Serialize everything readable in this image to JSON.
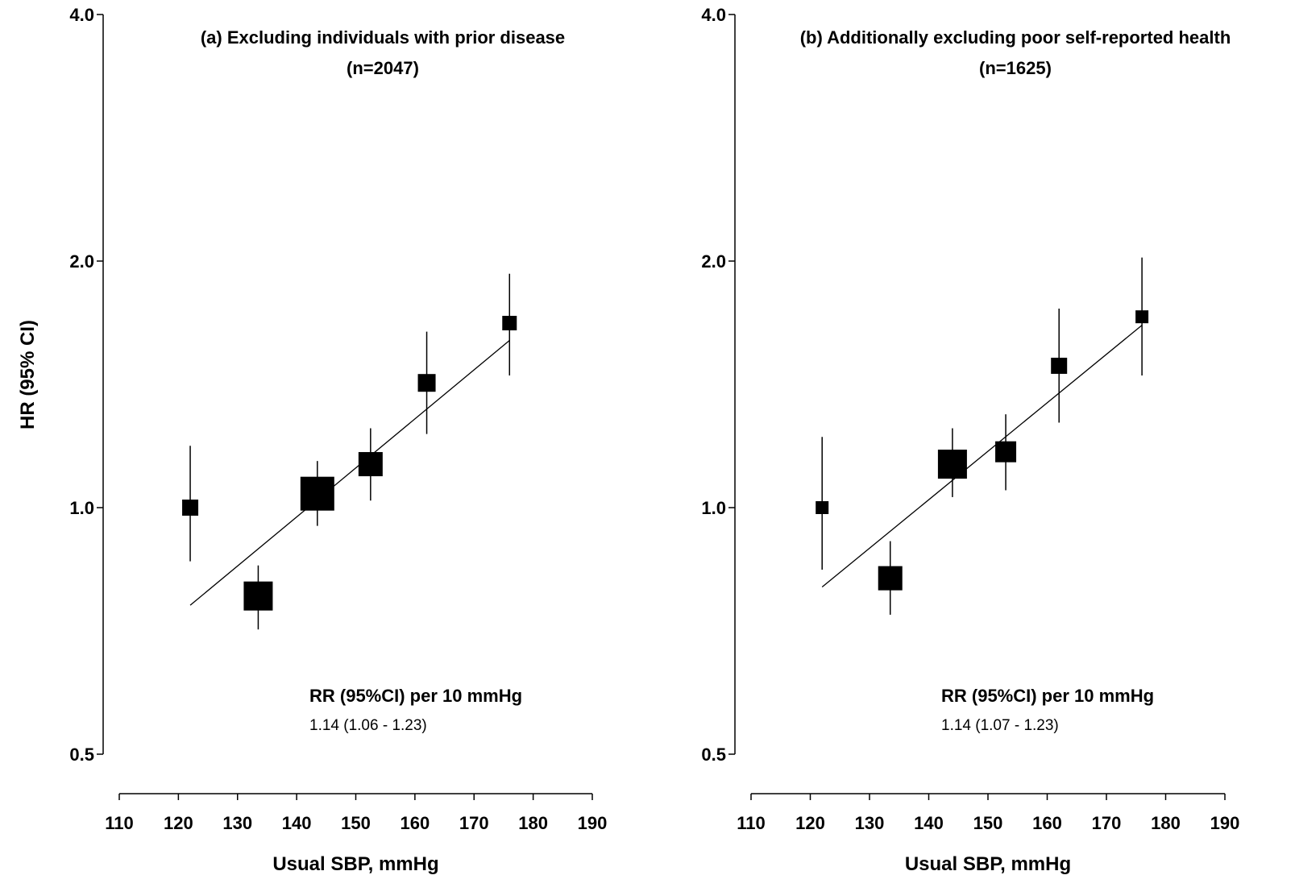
{
  "figure": {
    "ylabel": "HR (95% CI)"
  },
  "chart_data": [
    {
      "type": "scatter",
      "title": "(a) Excluding individuals with prior disease",
      "subtitle": "(n=2047)",
      "xlabel": "Usual SBP, mmHg",
      "ylabel": "HR (95% CI)",
      "y_scale": "log",
      "xlim": [
        110,
        190
      ],
      "ylim": [
        0.5,
        4.0
      ],
      "x_ticks": [
        "110",
        "120",
        "130",
        "140",
        "150",
        "160",
        "170",
        "180",
        "190"
      ],
      "y_ticks": [
        "0.5",
        "1.0",
        "2.0",
        "4.0"
      ],
      "points": [
        {
          "x": 122,
          "hr": 1.0,
          "lo": 0.86,
          "hi": 1.19,
          "weight": 1.0
        },
        {
          "x": 133.5,
          "hr": 0.78,
          "lo": 0.71,
          "hi": 0.85,
          "weight": 1.8
        },
        {
          "x": 143.5,
          "hr": 1.04,
          "lo": 0.95,
          "hi": 1.14,
          "weight": 2.1
        },
        {
          "x": 152.5,
          "hr": 1.13,
          "lo": 1.02,
          "hi": 1.25,
          "weight": 1.5
        },
        {
          "x": 162,
          "hr": 1.42,
          "lo": 1.23,
          "hi": 1.64,
          "weight": 1.1
        },
        {
          "x": 176,
          "hr": 1.68,
          "lo": 1.45,
          "hi": 1.93,
          "weight": 0.9
        }
      ],
      "fit_line": [
        {
          "x": 122,
          "hr": 0.76
        },
        {
          "x": 176,
          "hr": 1.6
        }
      ],
      "rr_label": "RR (95%CI) per 10 mmHg",
      "rr_value": "1.14 (1.06 - 1.23)"
    },
    {
      "type": "scatter",
      "title": "(b) Additionally excluding poor self-reported health",
      "subtitle": "(n=1625)",
      "xlabel": "Usual SBP, mmHg",
      "y_scale": "log",
      "xlim": [
        110,
        190
      ],
      "ylim": [
        0.5,
        4.0
      ],
      "x_ticks": [
        "110",
        "120",
        "130",
        "140",
        "150",
        "160",
        "170",
        "180",
        "190"
      ],
      "y_ticks": [
        "0.5",
        "1.0",
        "2.0",
        "4.0"
      ],
      "points": [
        {
          "x": 122,
          "hr": 1.0,
          "lo": 0.84,
          "hi": 1.22,
          "weight": 0.8
        },
        {
          "x": 133.5,
          "hr": 0.82,
          "lo": 0.74,
          "hi": 0.91,
          "weight": 1.5
        },
        {
          "x": 144,
          "hr": 1.13,
          "lo": 1.03,
          "hi": 1.25,
          "weight": 1.8
        },
        {
          "x": 153,
          "hr": 1.17,
          "lo": 1.05,
          "hi": 1.3,
          "weight": 1.3
        },
        {
          "x": 162,
          "hr": 1.49,
          "lo": 1.27,
          "hi": 1.75,
          "weight": 1.0
        },
        {
          "x": 176,
          "hr": 1.71,
          "lo": 1.45,
          "hi": 2.02,
          "weight": 0.8
        }
      ],
      "fit_line": [
        {
          "x": 122,
          "hr": 0.8
        },
        {
          "x": 176,
          "hr": 1.67
        }
      ],
      "rr_label": "RR (95%CI) per 10 mmHg",
      "rr_value": "1.14 (1.07 - 1.23)"
    }
  ]
}
